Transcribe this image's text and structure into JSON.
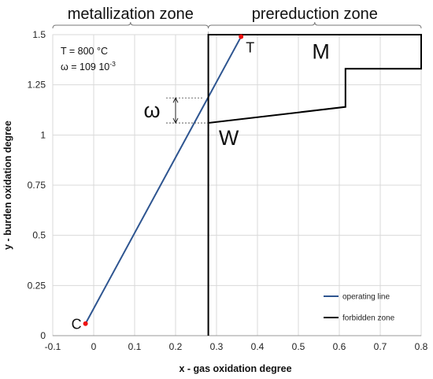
{
  "chart_data": {
    "type": "line",
    "xlabel": "x - gas oxidation degree",
    "ylabel": "y - burden oxidation degree",
    "xlim": [
      -0.1,
      0.8
    ],
    "ylim": [
      0,
      1.5
    ],
    "x_ticks": [
      "-0.1",
      "0",
      "0.1",
      "0.2",
      "0.3",
      "0.4",
      "0.5",
      "0.6",
      "0.7",
      "0.8"
    ],
    "y_ticks": [
      "0",
      "0.25",
      "0.5",
      "0.75",
      "1",
      "1.25",
      "1.5"
    ],
    "grid": true,
    "legend_position": "bottom-right",
    "series": [
      {
        "name": "operating line",
        "color": "#2e5590",
        "points": [
          [
            -0.02,
            0.06
          ],
          [
            0.36,
            1.49
          ]
        ]
      },
      {
        "name": "forbidden zone",
        "color": "#000000",
        "points": [
          [
            0.28,
            0
          ],
          [
            0.28,
            1.06
          ],
          [
            0.615,
            1.14
          ],
          [
            0.615,
            1.33
          ],
          [
            0.8,
            1.33
          ],
          [
            0.8,
            1.5
          ],
          [
            0.28,
            1.5
          ],
          [
            0.28,
            1.06
          ]
        ]
      }
    ],
    "points": [
      {
        "label": "C",
        "x": -0.02,
        "y": 0.06
      },
      {
        "label": "T",
        "x": 0.36,
        "y": 1.49
      }
    ],
    "zones": [
      {
        "label": "metallization zone",
        "x_from": -0.1,
        "x_to": 0.28
      },
      {
        "label": "prereduction zone",
        "x_from": 0.28,
        "x_to": 0.8
      }
    ],
    "region_labels": [
      {
        "label": "M",
        "x": 0.555,
        "y": 1.38
      },
      {
        "label": "W",
        "x": 0.33,
        "y": 0.95
      }
    ],
    "omega_marker": {
      "label": "ω",
      "x": 0.2,
      "y_from": 1.06,
      "y_to": 1.185
    },
    "annotations": {
      "temperature": "T = 800 °C",
      "omega_prefix": "ω = 109 10",
      "omega_exp": "-3"
    }
  }
}
